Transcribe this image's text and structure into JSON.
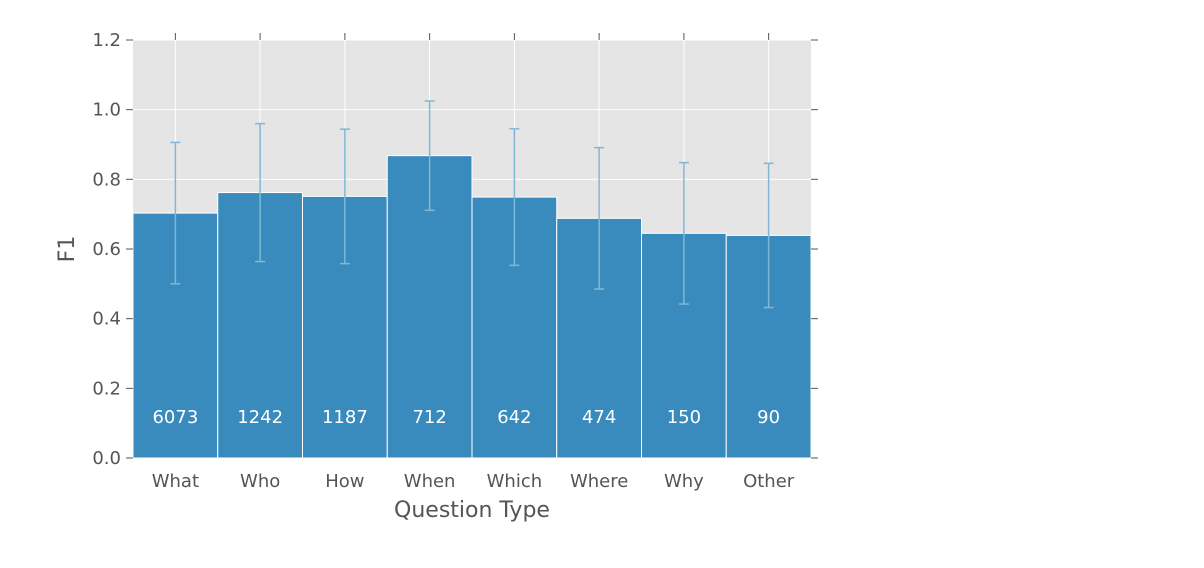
{
  "chart_data": {
    "type": "bar",
    "title": "",
    "xlabel": "Question Type",
    "ylabel": "F1",
    "ylim": [
      0,
      1.2
    ],
    "yticks": [
      "0.0",
      "0.2",
      "0.4",
      "0.6",
      "0.8",
      "1.0",
      "1.2"
    ],
    "grid": true,
    "categories": [
      "What",
      "Who",
      "How",
      "When",
      "Which",
      "Where",
      "Why",
      "Other"
    ],
    "values": [
      0.703,
      0.762,
      0.751,
      0.868,
      0.749,
      0.688,
      0.645,
      0.639
    ],
    "error": [
      0.203,
      0.198,
      0.193,
      0.157,
      0.196,
      0.203,
      0.203,
      0.207
    ],
    "counts": [
      "6073",
      "1242",
      "1187",
      "712",
      "642",
      "474",
      "150",
      "90"
    ],
    "colors": {
      "bar": "#3a8bbd",
      "errorbar": "#7fb8d6",
      "plot_background": "#e5e5e5",
      "grid": "#ffffff",
      "text": "#555555",
      "count_text": "#ffffff"
    }
  }
}
